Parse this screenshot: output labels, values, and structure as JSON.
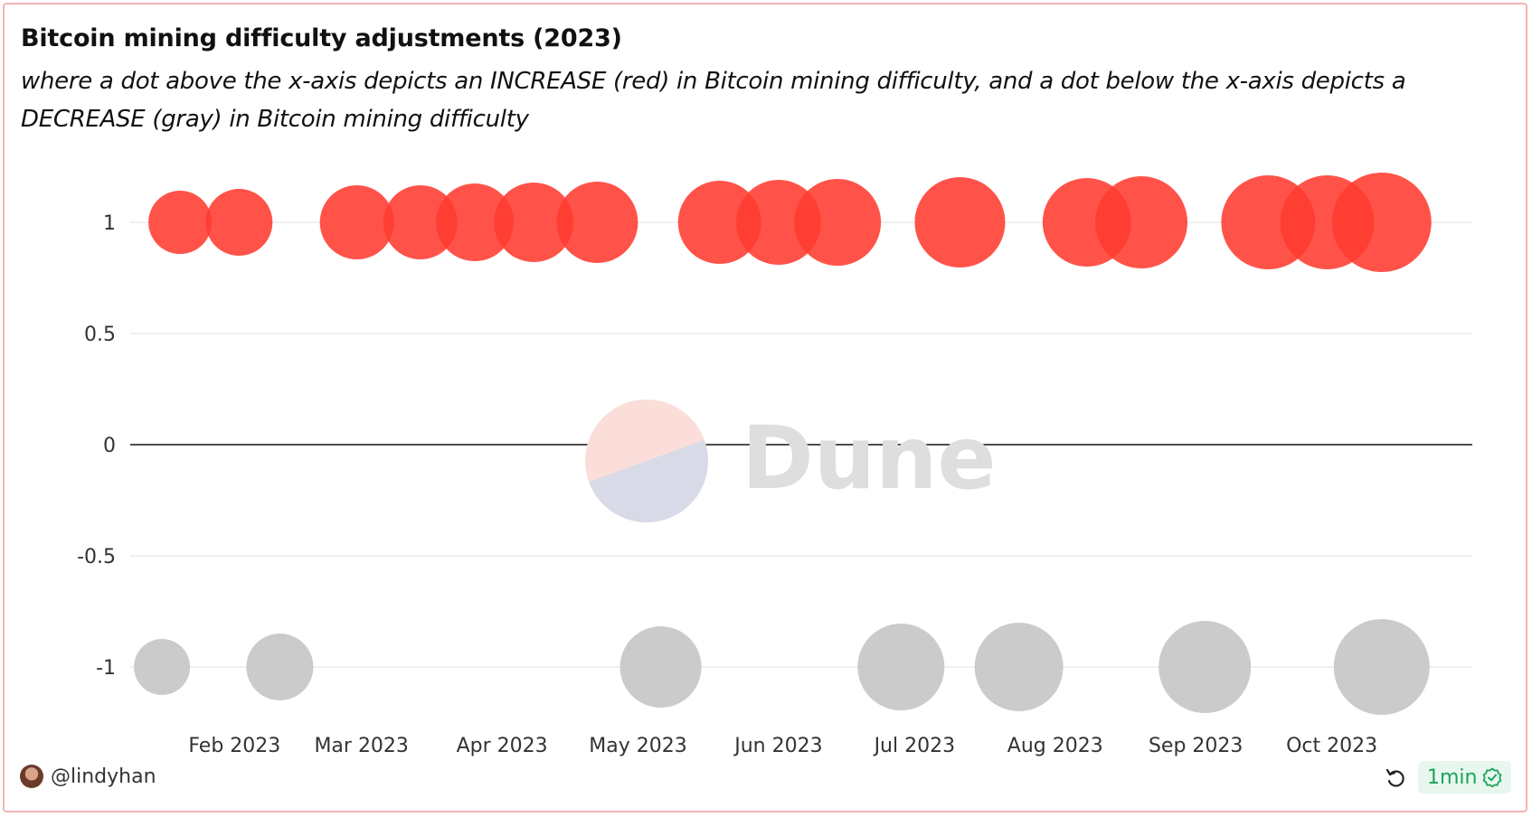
{
  "header": {
    "title": "Bitcoin mining difficulty adjustments (2023)",
    "subtitle": "where a dot above the x-axis depicts an INCREASE (red) in Bitcoin mining difficulty, and a dot below the x-axis depicts a DECREASE (gray) in Bitcoin mining difficulty"
  },
  "watermark": {
    "text": "Dune"
  },
  "footer": {
    "author": "@lindyhan",
    "freshness": "1min",
    "icons": {
      "refresh": "refresh-icon",
      "verified": "check-circle-icon",
      "avatar": "avatar"
    }
  },
  "chart_data": {
    "type": "scatter",
    "title": "Bitcoin mining difficulty adjustments (2023)",
    "xlabel": "",
    "ylabel": "",
    "ylim": [
      -1.25,
      1.25
    ],
    "y_ticks": [
      1,
      0.5,
      0,
      -0.5,
      -1
    ],
    "y_tick_labels": [
      "1",
      "0.5",
      "0",
      "-0.5",
      "-1"
    ],
    "xlim": [
      "2023-01-09",
      "2023-11-01"
    ],
    "x_tick_dates": [
      "2023-02-01",
      "2023-03-01",
      "2023-04-01",
      "2023-05-01",
      "2023-06-01",
      "2023-07-01",
      "2023-08-01",
      "2023-09-01",
      "2023-10-01"
    ],
    "x_tick_labels": [
      "Feb 2023",
      "Mar 2023",
      "Apr 2023",
      "May 2023",
      "Jun 2023",
      "Jul 2023",
      "Aug 2023",
      "Sep 2023",
      "Oct 2023"
    ],
    "grid": true,
    "legend": "none",
    "colors": {
      "increase": "#ff3b30",
      "decrease": "#c8c8c8",
      "zero_line": "#111111"
    },
    "series": [
      {
        "name": "INCREASE",
        "color": "#ff3b30",
        "points": [
          {
            "date": "2023-01-20",
            "y": 1,
            "size": 70
          },
          {
            "date": "2023-02-02",
            "y": 1,
            "size": 74
          },
          {
            "date": "2023-02-28",
            "y": 1,
            "size": 82
          },
          {
            "date": "2023-03-14",
            "y": 1,
            "size": 82
          },
          {
            "date": "2023-03-26",
            "y": 1,
            "size": 86
          },
          {
            "date": "2023-04-08",
            "y": 1,
            "size": 88
          },
          {
            "date": "2023-04-22",
            "y": 1,
            "size": 90
          },
          {
            "date": "2023-05-19",
            "y": 1,
            "size": 92
          },
          {
            "date": "2023-06-01",
            "y": 1,
            "size": 94
          },
          {
            "date": "2023-06-14",
            "y": 1,
            "size": 96
          },
          {
            "date": "2023-07-11",
            "y": 1,
            "size": 100
          },
          {
            "date": "2023-08-08",
            "y": 1,
            "size": 98
          },
          {
            "date": "2023-08-20",
            "y": 1,
            "size": 102
          },
          {
            "date": "2023-09-17",
            "y": 1,
            "size": 104
          },
          {
            "date": "2023-09-30",
            "y": 1,
            "size": 104
          },
          {
            "date": "2023-10-12",
            "y": 1,
            "size": 110
          }
        ]
      },
      {
        "name": "DECREASE",
        "color": "#c8c8c8",
        "points": [
          {
            "date": "2023-01-16",
            "y": -1,
            "size": 62
          },
          {
            "date": "2023-02-11",
            "y": -1,
            "size": 74
          },
          {
            "date": "2023-05-06",
            "y": -1,
            "size": 90
          },
          {
            "date": "2023-06-28",
            "y": -1,
            "size": 96
          },
          {
            "date": "2023-07-24",
            "y": -1,
            "size": 98
          },
          {
            "date": "2023-09-03",
            "y": -1,
            "size": 102
          },
          {
            "date": "2023-10-12",
            "y": -1,
            "size": 106
          }
        ]
      }
    ]
  }
}
